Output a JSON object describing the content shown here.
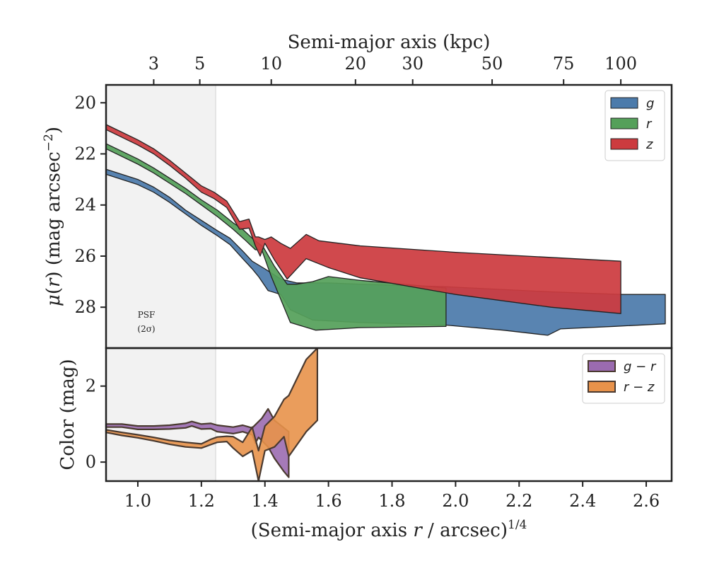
{
  "chart_data": [
    {
      "type": "area",
      "panel": "surface-brightness",
      "xlabel_top": "Semi-major axis (kpc)",
      "ylabel": "μ(r) (mag arcsec⁻²)",
      "ylabel_parts": {
        "mu": "μ",
        "open": "(",
        "var": "r",
        "close": ")",
        "unit": " (mag arcsec",
        "exp": "−2",
        "end": ")"
      },
      "xlim": [
        0.9,
        2.68
      ],
      "ylim": [
        29.6,
        19.3
      ],
      "y_inverted": true,
      "yticks": [
        20,
        22,
        24,
        26,
        28
      ],
      "top_ticks": [
        {
          "label": "3",
          "x": 1.05
        },
        {
          "label": "5",
          "x": 1.195
        },
        {
          "label": "10",
          "x": 1.42
        },
        {
          "label": "20",
          "x": 1.685
        },
        {
          "label": "30",
          "x": 1.865
        },
        {
          "label": "50",
          "x": 2.115
        },
        {
          "label": "75",
          "x": 2.34
        },
        {
          "label": "100",
          "x": 2.52
        }
      ],
      "psf_region": {
        "x_end": 1.245,
        "label_line1": "PSF",
        "label_line2": "(2σ)"
      },
      "legend": {
        "placement": "top-right",
        "entries": [
          "g",
          "r",
          "z"
        ]
      },
      "series": [
        {
          "name": "g",
          "color": "#4c7bab",
          "upper": [
            [
              0.9,
              22.6
            ],
            [
              1.0,
              23.0
            ],
            [
              1.05,
              23.3
            ],
            [
              1.1,
              23.7
            ],
            [
              1.15,
              24.2
            ],
            [
              1.2,
              24.6
            ],
            [
              1.25,
              25.0
            ],
            [
              1.29,
              25.3
            ],
            [
              1.33,
              25.8
            ],
            [
              1.36,
              26.2
            ],
            [
              1.4,
              26.5
            ],
            [
              1.45,
              26.9
            ],
            [
              1.5,
              27.05
            ],
            [
              1.6,
              27.05
            ],
            [
              1.7,
              27.1
            ],
            [
              1.97,
              27.2
            ],
            [
              2.3,
              27.4
            ],
            [
              2.52,
              27.5
            ],
            [
              2.66,
              27.5
            ]
          ],
          "lower": [
            [
              0.9,
              22.8
            ],
            [
              1.0,
              23.2
            ],
            [
              1.05,
              23.5
            ],
            [
              1.1,
              23.9
            ],
            [
              1.15,
              24.35
            ],
            [
              1.2,
              24.8
            ],
            [
              1.25,
              25.2
            ],
            [
              1.29,
              25.55
            ],
            [
              1.33,
              26.1
            ],
            [
              1.36,
              26.5
            ],
            [
              1.38,
              26.8
            ],
            [
              1.41,
              27.35
            ],
            [
              1.45,
              27.5
            ],
            [
              1.48,
              28.1
            ],
            [
              1.55,
              28.5
            ],
            [
              1.7,
              28.6
            ],
            [
              1.97,
              28.7
            ],
            [
              2.15,
              28.9
            ],
            [
              2.29,
              29.1
            ],
            [
              2.33,
              28.85
            ],
            [
              2.5,
              28.75
            ],
            [
              2.66,
              28.65
            ]
          ]
        },
        {
          "name": "r",
          "color": "#55a05a",
          "upper": [
            [
              0.9,
              21.6
            ],
            [
              1.0,
              22.2
            ],
            [
              1.05,
              22.55
            ],
            [
              1.1,
              22.95
            ],
            [
              1.15,
              23.35
            ],
            [
              1.2,
              23.8
            ],
            [
              1.25,
              24.2
            ],
            [
              1.3,
              24.7
            ],
            [
              1.33,
              24.95
            ],
            [
              1.36,
              25.3
            ],
            [
              1.395,
              25.65
            ],
            [
              1.43,
              26.4
            ],
            [
              1.47,
              27.1
            ],
            [
              1.5,
              27.1
            ],
            [
              1.55,
              27.0
            ],
            [
              1.6,
              26.8
            ],
            [
              1.7,
              26.95
            ],
            [
              1.97,
              27.25
            ]
          ],
          "lower": [
            [
              0.9,
              21.8
            ],
            [
              1.0,
              22.4
            ],
            [
              1.05,
              22.75
            ],
            [
              1.1,
              23.15
            ],
            [
              1.15,
              23.55
            ],
            [
              1.2,
              24.0
            ],
            [
              1.25,
              24.45
            ],
            [
              1.3,
              24.95
            ],
            [
              1.34,
              25.4
            ],
            [
              1.37,
              25.75
            ],
            [
              1.39,
              25.75
            ],
            [
              1.42,
              26.8
            ],
            [
              1.45,
              27.7
            ],
            [
              1.48,
              28.6
            ],
            [
              1.56,
              28.9
            ],
            [
              1.7,
              28.8
            ],
            [
              1.97,
              28.75
            ]
          ]
        },
        {
          "name": "z",
          "color": "#cc3b3f",
          "upper": [
            [
              0.9,
              20.85
            ],
            [
              1.0,
              21.45
            ],
            [
              1.05,
              21.8
            ],
            [
              1.1,
              22.25
            ],
            [
              1.15,
              22.75
            ],
            [
              1.2,
              23.25
            ],
            [
              1.24,
              23.5
            ],
            [
              1.28,
              23.85
            ],
            [
              1.32,
              24.65
            ],
            [
              1.35,
              24.55
            ],
            [
              1.37,
              25.25
            ],
            [
              1.38,
              25.25
            ],
            [
              1.4,
              25.35
            ],
            [
              1.42,
              25.25
            ],
            [
              1.45,
              25.5
            ],
            [
              1.48,
              25.7
            ],
            [
              1.53,
              25.15
            ],
            [
              1.57,
              25.4
            ],
            [
              1.7,
              25.6
            ],
            [
              2.0,
              25.85
            ],
            [
              2.52,
              26.2
            ]
          ],
          "lower": [
            [
              0.9,
              21.05
            ],
            [
              1.0,
              21.65
            ],
            [
              1.05,
              22.0
            ],
            [
              1.1,
              22.45
            ],
            [
              1.15,
              22.95
            ],
            [
              1.2,
              23.5
            ],
            [
              1.24,
              23.75
            ],
            [
              1.28,
              24.1
            ],
            [
              1.32,
              24.95
            ],
            [
              1.35,
              24.9
            ],
            [
              1.37,
              25.6
            ],
            [
              1.385,
              26.0
            ],
            [
              1.4,
              25.5
            ],
            [
              1.43,
              26.15
            ],
            [
              1.47,
              26.9
            ],
            [
              1.53,
              26.1
            ],
            [
              1.6,
              26.45
            ],
            [
              1.7,
              26.85
            ],
            [
              2.0,
              27.5
            ],
            [
              2.3,
              28.0
            ],
            [
              2.52,
              28.25
            ]
          ]
        }
      ]
    },
    {
      "type": "area",
      "panel": "color",
      "xlabel": "(Semi-major axis r / arcsec)1/4",
      "xlabel_parts": {
        "pre": "(Semi-major axis ",
        "var": "r",
        "post": " / arcsec)",
        "exp": "1/4"
      },
      "ylabel": "Color (mag)",
      "xlim": [
        0.9,
        2.68
      ],
      "ylim": [
        -0.5,
        3.0
      ],
      "xticks": [
        "1.0",
        "1.2",
        "1.4",
        "1.6",
        "1.8",
        "2.0",
        "2.2",
        "2.4",
        "2.6"
      ],
      "yticks": [
        0,
        2
      ],
      "legend": {
        "placement": "top-right",
        "entries": [
          "g − r",
          "r − z"
        ]
      },
      "series": [
        {
          "name": "g − r",
          "color": "#9b6bb0",
          "upper": [
            [
              0.9,
              1.0
            ],
            [
              0.95,
              1.0
            ],
            [
              1.0,
              0.95
            ],
            [
              1.05,
              0.95
            ],
            [
              1.1,
              0.97
            ],
            [
              1.15,
              1.02
            ],
            [
              1.17,
              1.07
            ],
            [
              1.2,
              1.0
            ],
            [
              1.23,
              1.02
            ],
            [
              1.25,
              0.97
            ],
            [
              1.3,
              0.92
            ],
            [
              1.33,
              0.97
            ],
            [
              1.36,
              0.9
            ],
            [
              1.39,
              1.15
            ],
            [
              1.41,
              1.4
            ],
            [
              1.43,
              1.1
            ],
            [
              1.46,
              0.9
            ],
            [
              1.475,
              0.8
            ]
          ],
          "lower": [
            [
              0.9,
              0.92
            ],
            [
              0.95,
              0.92
            ],
            [
              1.0,
              0.86
            ],
            [
              1.05,
              0.86
            ],
            [
              1.1,
              0.87
            ],
            [
              1.15,
              0.9
            ],
            [
              1.17,
              0.95
            ],
            [
              1.2,
              0.87
            ],
            [
              1.23,
              0.88
            ],
            [
              1.25,
              0.8
            ],
            [
              1.3,
              0.75
            ],
            [
              1.33,
              0.8
            ],
            [
              1.36,
              0.72
            ],
            [
              1.37,
              0.5
            ],
            [
              1.38,
              0.65
            ],
            [
              1.41,
              0.4
            ],
            [
              1.43,
              0.1
            ],
            [
              1.46,
              -0.25
            ],
            [
              1.475,
              -0.4
            ]
          ]
        },
        {
          "name": "r − z",
          "color": "#e8924a",
          "upper": [
            [
              0.9,
              0.85
            ],
            [
              0.95,
              0.78
            ],
            [
              1.0,
              0.72
            ],
            [
              1.05,
              0.65
            ],
            [
              1.1,
              0.57
            ],
            [
              1.15,
              0.52
            ],
            [
              1.2,
              0.48
            ],
            [
              1.23,
              0.6
            ],
            [
              1.25,
              0.66
            ],
            [
              1.28,
              0.68
            ],
            [
              1.3,
              0.67
            ],
            [
              1.33,
              0.52
            ],
            [
              1.36,
              0.92
            ],
            [
              1.38,
              0.3
            ],
            [
              1.4,
              0.95
            ],
            [
              1.43,
              1.2
            ],
            [
              1.46,
              1.65
            ],
            [
              1.475,
              1.75
            ],
            [
              1.53,
              2.7
            ],
            [
              1.565,
              3.0
            ]
          ],
          "lower": [
            [
              0.9,
              0.78
            ],
            [
              0.95,
              0.7
            ],
            [
              1.0,
              0.64
            ],
            [
              1.05,
              0.56
            ],
            [
              1.1,
              0.47
            ],
            [
              1.15,
              0.4
            ],
            [
              1.2,
              0.37
            ],
            [
              1.23,
              0.46
            ],
            [
              1.25,
              0.52
            ],
            [
              1.28,
              0.54
            ],
            [
              1.3,
              0.37
            ],
            [
              1.33,
              0.15
            ],
            [
              1.36,
              0.3
            ],
            [
              1.38,
              -0.5
            ],
            [
              1.4,
              0.3
            ],
            [
              1.43,
              0.4
            ],
            [
              1.46,
              0.67
            ],
            [
              1.475,
              0.15
            ],
            [
              1.53,
              0.8
            ],
            [
              1.565,
              1.1
            ]
          ]
        }
      ]
    }
  ]
}
